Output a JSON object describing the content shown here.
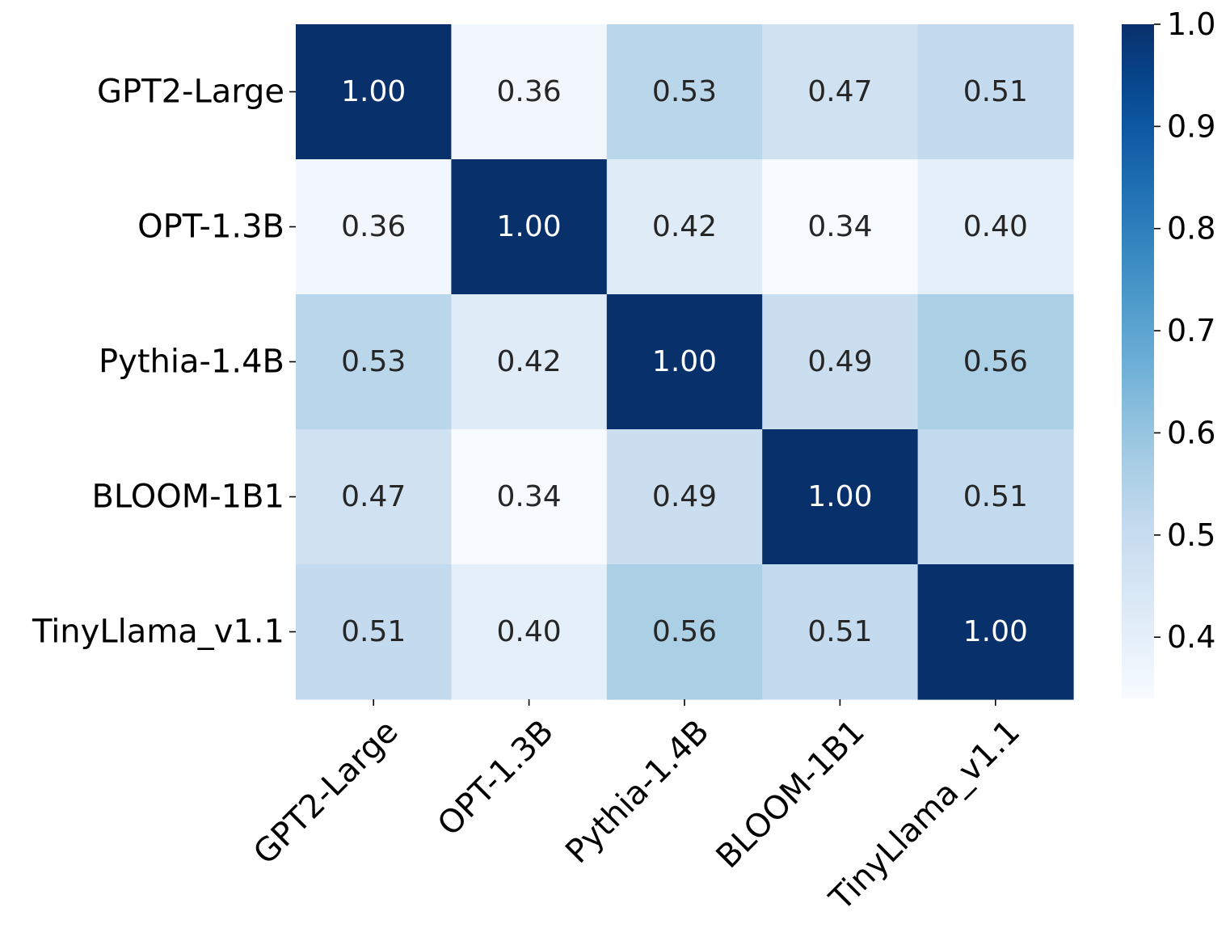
{
  "chart_data": {
    "type": "heatmap",
    "title": "",
    "xlabel": "",
    "ylabel": "",
    "row_labels": [
      "GPT2-Large",
      "OPT-1.3B",
      "Pythia-1.4B",
      "BLOOM-1B1",
      "TinyLlama_v1.1"
    ],
    "col_labels": [
      "GPT2-Large",
      "OPT-1.3B",
      "Pythia-1.4B",
      "BLOOM-1B1",
      "TinyLlama_v1.1"
    ],
    "values": [
      [
        1.0,
        0.36,
        0.53,
        0.47,
        0.51
      ],
      [
        0.36,
        1.0,
        0.42,
        0.34,
        0.4
      ],
      [
        0.53,
        0.42,
        1.0,
        0.49,
        0.56
      ],
      [
        0.47,
        0.34,
        0.49,
        1.0,
        0.51
      ],
      [
        0.51,
        0.4,
        0.56,
        0.51,
        1.0
      ]
    ],
    "annotation_format": "2 decimals",
    "colormap": "Blues",
    "colorbar": {
      "range": [
        0.34,
        1.0
      ],
      "ticks": [
        0.4,
        0.5,
        0.6,
        0.7,
        0.8,
        0.9,
        1.0
      ],
      "tick_labels": [
        "0.4",
        "0.5",
        "0.6",
        "0.7",
        "0.8",
        "0.9",
        "1.0"
      ]
    },
    "x_tick_rotation_deg": 45,
    "grid": false
  }
}
